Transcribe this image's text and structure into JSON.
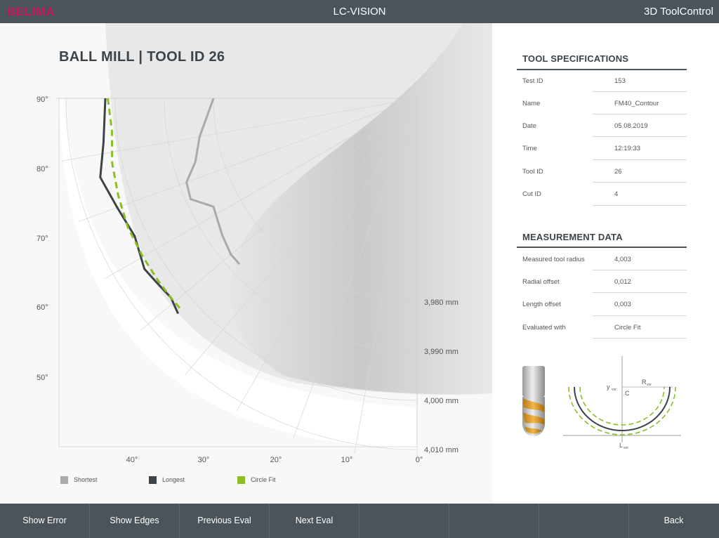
{
  "header": {
    "logo": "BELIMA",
    "app_title": "LC-VISION",
    "mode_title": "3D ToolControl"
  },
  "page_title": "BALL MILL | TOOL ID 26",
  "tool_specifications": {
    "title": "TOOL SPECIFICATIONS",
    "rows": [
      {
        "label": "Test ID",
        "value": "153"
      },
      {
        "label": "Name",
        "value": "FM40_Contour"
      },
      {
        "label": "Date",
        "value": "05.08.2019"
      },
      {
        "label": "Time",
        "value": "12:19:33"
      },
      {
        "label": "Tool ID",
        "value": "26"
      },
      {
        "label": "Cut ID",
        "value": "4"
      }
    ]
  },
  "measurement_data": {
    "title": "MEASUREMENT DATA",
    "rows": [
      {
        "label": "Measured tool radius",
        "value": "4,003"
      },
      {
        "label": "Radial offset",
        "value": "0,012"
      },
      {
        "label": "Length offset",
        "value": "0,003"
      },
      {
        "label": "Evaluated with",
        "value": "Circle Fit"
      }
    ]
  },
  "diagram_labels": {
    "y": "y",
    "y_sub": "vor",
    "c": "C",
    "r": "R",
    "r_sub": "vor",
    "l": "L",
    "l_sub": "vor"
  },
  "legend": [
    {
      "label": "Shortest",
      "color": "#aaaaaa"
    },
    {
      "label": "Longest",
      "color": "#3c444a"
    },
    {
      "label": "Circle Fit",
      "color": "#8cbf26"
    }
  ],
  "chart_data": {
    "type": "line",
    "coordinate_system": "polar",
    "angle_ticks": [
      "40°",
      "30°",
      "20°",
      "10°",
      "0°"
    ],
    "elevation_ticks": [
      "90°",
      "80°",
      "70°",
      "60°",
      "50°"
    ],
    "radius_ticks": [
      "3,980 mm",
      "3,990 mm",
      "4,000 mm",
      "4,010 mm"
    ],
    "radius_range_mm": [
      3.98,
      4.01
    ],
    "series": [
      {
        "name": "Shortest",
        "color": "#aaaaaa",
        "points": [
          [
            90,
            3.98
          ],
          [
            80,
            3.9835
          ],
          [
            74,
            3.9855
          ],
          [
            70,
            3.9885
          ],
          [
            66,
            3.989
          ],
          [
            62,
            3.9855
          ],
          [
            55,
            3.987
          ],
          [
            50,
            3.988
          ],
          [
            47,
            3.988
          ]
        ]
      },
      {
        "name": "Longest",
        "color": "#3c444a",
        "points": [
          [
            90,
            4.002
          ],
          [
            82,
            4.003
          ],
          [
            76,
            4.005
          ],
          [
            70,
            4.0035
          ],
          [
            64,
            4.0025
          ],
          [
            58,
            4.004
          ],
          [
            55,
            4.0035
          ],
          [
            51,
            4.003
          ],
          [
            48,
            4.004
          ]
        ]
      },
      {
        "name": "Circle Fit",
        "color": "#8cbf26",
        "points": [
          [
            90,
            4.0015
          ],
          [
            84,
            4.001
          ],
          [
            78,
            4.002
          ],
          [
            72,
            4.0025
          ],
          [
            66,
            4.003
          ],
          [
            60,
            4.003
          ],
          [
            55,
            4.003
          ],
          [
            51,
            4.003
          ],
          [
            48,
            4.003
          ]
        ]
      }
    ],
    "grid": true,
    "legend_position": "bottom-left"
  }
}
